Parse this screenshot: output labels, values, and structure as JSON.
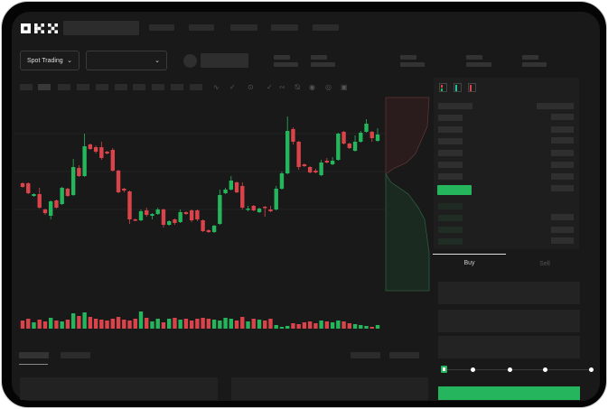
{
  "header": {
    "logo": "OKX"
  },
  "market": {
    "mode_label": "Spot Trading",
    "pair_select_value": ""
  },
  "trade": {
    "buy_tab": "Buy",
    "sell_tab": "Sell",
    "slider_percent": 0,
    "slider_stops": [
      0,
      25,
      50,
      75,
      100
    ]
  },
  "colors": {
    "up": "#25b55c",
    "down": "#d9434a",
    "background": "#191919",
    "panel": "#1f1f1f"
  },
  "icons": [
    "okx-logo",
    "chevron-down-icon",
    "candles-icon",
    "indicator-icon",
    "time-icon",
    "line-tool-icon",
    "ruler-icon",
    "camera-icon",
    "settings-icon",
    "fullscreen-icon",
    "orderbook-both-icon",
    "orderbook-bids-icon",
    "orderbook-asks-icon"
  ],
  "chart_data": {
    "type": "candlestick",
    "candles": [
      [
        97,
        98,
        92,
        93
      ],
      [
        97,
        98,
        85,
        86
      ],
      [
        83,
        86,
        82,
        85
      ],
      [
        85,
        92,
        69,
        70
      ],
      [
        68,
        69,
        62,
        64
      ],
      [
        61,
        78,
        57,
        77
      ],
      [
        78,
        79,
        69,
        70
      ],
      [
        74,
        93,
        73,
        92
      ],
      [
        91,
        92,
        82,
        83
      ],
      [
        84,
        124,
        83,
        115
      ],
      [
        114,
        117,
        104,
        105
      ],
      [
        105,
        152,
        104,
        138
      ],
      [
        140,
        141,
        134,
        135
      ],
      [
        137,
        139,
        130,
        132
      ],
      [
        137,
        143,
        123,
        125
      ],
      [
        132,
        133,
        129,
        130
      ],
      [
        134,
        136,
        110,
        111
      ],
      [
        111,
        112,
        86,
        87
      ],
      [
        91,
        92,
        87,
        89
      ],
      [
        88,
        89,
        52,
        57
      ],
      [
        57,
        58,
        55,
        56
      ],
      [
        56,
        68,
        55,
        66
      ],
      [
        67,
        70,
        60,
        62
      ],
      [
        61,
        64,
        57,
        63
      ],
      [
        63,
        70,
        62,
        68
      ],
      [
        68,
        69,
        48,
        51
      ],
      [
        51,
        56,
        50,
        55
      ],
      [
        57,
        58,
        51,
        53
      ],
      [
        54,
        68,
        53,
        65
      ],
      [
        65,
        66,
        62,
        63
      ],
      [
        67,
        68,
        54,
        56
      ],
      [
        67,
        68,
        55,
        57
      ],
      [
        56,
        57,
        43,
        44
      ],
      [
        45,
        46,
        42,
        43
      ],
      [
        43,
        51,
        42,
        50
      ],
      [
        52,
        90,
        51,
        84
      ],
      [
        86,
        92,
        85,
        90
      ],
      [
        90,
        105,
        89,
        100
      ],
      [
        98,
        99,
        86,
        87
      ],
      [
        94,
        98,
        68,
        70
      ],
      [
        68,
        72,
        66,
        69
      ],
      [
        72,
        73,
        66,
        67
      ],
      [
        65,
        70,
        64,
        69
      ],
      [
        71,
        72,
        60,
        70
      ],
      [
        68,
        72,
        65,
        66
      ],
      [
        68,
        94,
        67,
        91
      ],
      [
        91,
        110,
        90,
        108
      ],
      [
        108,
        171,
        107,
        155
      ],
      [
        157,
        159,
        140,
        143
      ],
      [
        143,
        144,
        112,
        115
      ],
      [
        118,
        119,
        115,
        116
      ],
      [
        115,
        116,
        108,
        109
      ],
      [
        111,
        113,
        108,
        109
      ],
      [
        106,
        123,
        105,
        120
      ],
      [
        122,
        125,
        119,
        120
      ],
      [
        118,
        126,
        117,
        122
      ],
      [
        123,
        153,
        122,
        152
      ],
      [
        154,
        155,
        140,
        141
      ],
      [
        141,
        142,
        135,
        136
      ],
      [
        133,
        150,
        132,
        143
      ],
      [
        143,
        155,
        142,
        153
      ],
      [
        154,
        168,
        153,
        163
      ],
      [
        154,
        155,
        143,
        147
      ],
      [
        144,
        158,
        143,
        151
      ]
    ],
    "volume": [
      45,
      55,
      35,
      50,
      40,
      60,
      45,
      40,
      50,
      85,
      70,
      90,
      65,
      55,
      50,
      45,
      55,
      65,
      50,
      45,
      55,
      95,
      60,
      40,
      55,
      35,
      55,
      60,
      50,
      55,
      45,
      55,
      60,
      55,
      50,
      45,
      60,
      55,
      45,
      65,
      40,
      55,
      50,
      45,
      55,
      20,
      10,
      15,
      30,
      25,
      35,
      40,
      30,
      45,
      40,
      35,
      45,
      40,
      30,
      25,
      20,
      15,
      10,
      20
    ],
    "ohlc_order": [
      "open",
      "high",
      "low",
      "close"
    ]
  }
}
